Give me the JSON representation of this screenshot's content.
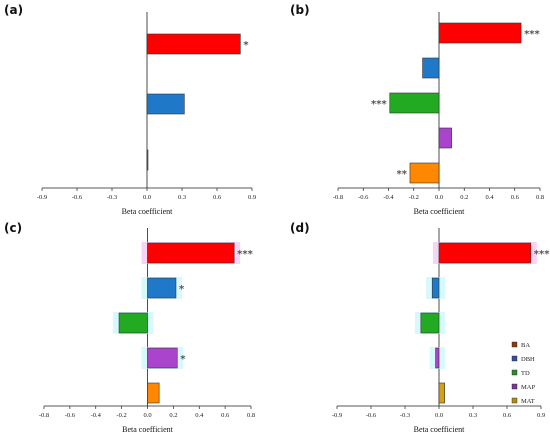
{
  "colors": {
    "BA": "#ff0000",
    "DBH": "#1f78c8",
    "TD": "#22aa22",
    "MAP": "#aa44cc",
    "MAT": "#ff8800",
    "MAT_d": "#d4a017",
    "highlight": "#f6c6f0",
    "cyan_glow": "#c8f8fb"
  },
  "legend": [
    {
      "label": "BA",
      "swatch": "#8b3a10"
    },
    {
      "label": "DBH",
      "swatch": "#3a4ea0"
    },
    {
      "label": "TD",
      "swatch": "#2e8a2e"
    },
    {
      "label": "MAP",
      "swatch": "#7a3a90"
    },
    {
      "label": "MAT",
      "swatch": "#b08a1a"
    }
  ],
  "chart_data": [
    {
      "id": "a",
      "label": "(a)",
      "type": "bar",
      "orientation": "horizontal",
      "xlabel": "Beta coefficient",
      "xlim": [
        -0.9,
        0.9
      ],
      "xticks": [
        "-0.9",
        "-0.6",
        "-0.3",
        "0.0",
        "0.3",
        "0.6",
        "0.9"
      ],
      "bars": [
        {
          "value": 0.8,
          "color": "#ff0000",
          "sig": "*"
        },
        {
          "value": 0.32,
          "color": "#1f78c8",
          "sig": ""
        },
        {
          "value": 0.0,
          "color": "#22aa22",
          "sig": ""
        }
      ]
    },
    {
      "id": "b",
      "label": "(b)",
      "type": "bar",
      "orientation": "horizontal",
      "xlabel": "Beta coefficient",
      "xlim": [
        -0.8,
        0.8
      ],
      "xticks": [
        "-0.8",
        "-0.6",
        "-0.4",
        "-0.2",
        "0.0",
        "0.2",
        "0.4",
        "0.6",
        "0.8"
      ],
      "bars": [
        {
          "value": 0.65,
          "color": "#ff0000",
          "sig": "***"
        },
        {
          "value": -0.13,
          "color": "#1f78c8",
          "sig": ""
        },
        {
          "value": -0.39,
          "color": "#22aa22",
          "sig": "***"
        },
        {
          "value": 0.1,
          "color": "#aa44cc",
          "sig": ""
        },
        {
          "value": -0.23,
          "color": "#ff8800",
          "sig": "**"
        }
      ]
    },
    {
      "id": "c",
      "label": "(c)",
      "type": "bar",
      "orientation": "horizontal",
      "xlabel": "Beta coefficient",
      "xlim": [
        -0.8,
        0.8
      ],
      "xticks": [
        "-0.8",
        "-0.6",
        "-0.4",
        "-0.2",
        "0.0",
        "0.2",
        "0.4",
        "0.6",
        "0.8"
      ],
      "bars": [
        {
          "value": 0.67,
          "color": "#ff0000",
          "sig": "***"
        },
        {
          "value": 0.22,
          "color": "#1f78c8",
          "sig": "*"
        },
        {
          "value": -0.22,
          "color": "#22aa22",
          "sig": ""
        },
        {
          "value": 0.23,
          "color": "#aa44cc",
          "sig": "*"
        },
        {
          "value": 0.09,
          "color": "#ff8800",
          "sig": ""
        }
      ]
    },
    {
      "id": "d",
      "label": "(d)",
      "type": "bar",
      "orientation": "horizontal",
      "xlabel": "Beta coefficient",
      "xlim": [
        -0.9,
        0.9
      ],
      "xticks": [
        "-0.9",
        "-0.6",
        "-0.3",
        "0.0",
        "0.3",
        "0.6",
        "0.9"
      ],
      "bars": [
        {
          "value": 0.81,
          "color": "#ff0000",
          "sig": "***"
        },
        {
          "value": -0.06,
          "color": "#1f78c8",
          "sig": ""
        },
        {
          "value": -0.16,
          "color": "#22aa22",
          "sig": ""
        },
        {
          "value": -0.03,
          "color": "#aa44cc",
          "sig": ""
        },
        {
          "value": 0.05,
          "color": "#d4a017",
          "sig": ""
        }
      ]
    }
  ]
}
